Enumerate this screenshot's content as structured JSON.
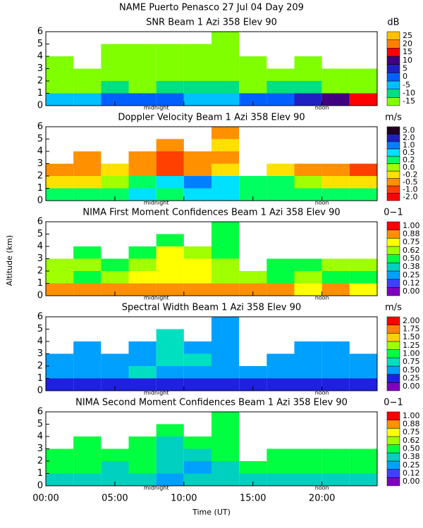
{
  "title": "NAME Puerto Penasco  27 Jul 04 Day 209",
  "ylabel": "Altitude (km)",
  "xlabel": "Time (UT)",
  "chart_data": [
    {
      "type": "heatmap",
      "title": "SNR Beam 1 Azi 358 Elev 90",
      "units": "dB",
      "xlim": [
        0,
        24
      ],
      "xticks": [
        0,
        5,
        10,
        15,
        20
      ],
      "ylim": [
        0,
        6
      ],
      "yticks": [
        0,
        1,
        2,
        3,
        4,
        5,
        6
      ],
      "xbins": [
        0,
        2,
        4,
        6,
        8,
        10,
        12,
        14,
        16,
        18,
        20,
        22,
        24
      ],
      "ybins": [
        0,
        1,
        2,
        3,
        4,
        5,
        6
      ],
      "annotations": [
        {
          "text": "midnight",
          "x": 8
        },
        {
          "text": "noon",
          "x": 20
        }
      ],
      "colorbar": {
        "ticks": [
          -15,
          -10,
          -5,
          0,
          5,
          10,
          15,
          20,
          25
        ],
        "colors": [
          "#80ff00",
          "#00e080",
          "#00c0ff",
          "#0060ff",
          "#2020c0",
          "#400080",
          "#ff0000",
          "#ff8000",
          "#ffc000"
        ]
      },
      "z": [
        [
          -5,
          -5,
          0,
          0,
          0,
          -5,
          -5,
          0,
          0,
          5,
          10,
          15
        ],
        [
          -12,
          -12,
          -10,
          -12,
          -10,
          -10,
          -10,
          -12,
          -10,
          -10,
          -12,
          -12
        ],
        [
          -13,
          -14,
          -12,
          -12,
          -12,
          -12,
          -12,
          -13,
          -14,
          -14,
          -13,
          -13
        ],
        [
          -14,
          null,
          -13,
          -13,
          -12,
          -13,
          -12,
          -14,
          null,
          -14,
          null,
          null
        ],
        [
          null,
          null,
          -14,
          -14,
          -13,
          -14,
          -13,
          null,
          null,
          null,
          null,
          null
        ],
        [
          null,
          null,
          null,
          null,
          null,
          null,
          -14,
          null,
          null,
          null,
          null,
          null
        ]
      ]
    },
    {
      "type": "heatmap",
      "title": "Doppler Velocity Beam 1 Azi 358 Elev 90",
      "units": "m/s",
      "xlim": [
        0,
        24
      ],
      "xticks": [
        0,
        5,
        10,
        15,
        20
      ],
      "ylim": [
        0,
        6
      ],
      "yticks": [
        0,
        1,
        2,
        3,
        4,
        5,
        6
      ],
      "xbins": [
        0,
        2,
        4,
        6,
        8,
        10,
        12,
        14,
        16,
        18,
        20,
        22,
        24
      ],
      "ybins": [
        0,
        1,
        2,
        3,
        4,
        5,
        6
      ],
      "annotations": [
        {
          "text": "midnight",
          "x": 8
        },
        {
          "text": "noon",
          "x": 20
        }
      ],
      "colorbar": {
        "ticks": [
          {
            "value": -2,
            "label": "-2.0"
          },
          {
            "value": -1,
            "label": "-1.0"
          },
          -0.5,
          -0.2,
          {
            "value": 0,
            "label": "0.0"
          },
          0.2,
          0.5,
          {
            "value": 1,
            "label": "1.0"
          },
          {
            "value": 2,
            "label": "2.0"
          },
          {
            "value": 5,
            "label": "5.0"
          }
        ],
        "colors": [
          "#ff0000",
          "#ff4000",
          "#ff9000",
          "#ffe000",
          "#a0ff00",
          "#00ff60",
          "#00e0ff",
          "#0080ff",
          "#2020c0",
          "#200020"
        ]
      },
      "z": [
        [
          0.2,
          0.2,
          0.2,
          0.5,
          0.2,
          0.5,
          0.5,
          0.2,
          0.2,
          0.2,
          0.2,
          0.2
        ],
        [
          -0.2,
          -0.2,
          0,
          0.2,
          0.5,
          1.0,
          0.5,
          0.2,
          0.2,
          0,
          -0.2,
          -0.2
        ],
        [
          -0.5,
          -0.5,
          -0.2,
          -0.5,
          -1.0,
          -0.5,
          -0.2,
          null,
          -0.2,
          -0.5,
          -0.5,
          -1.0
        ],
        [
          null,
          -0.5,
          null,
          -0.5,
          -1.0,
          -0.5,
          -0.5,
          null,
          null,
          null,
          null,
          null
        ],
        [
          null,
          null,
          null,
          null,
          -0.5,
          null,
          -0.2,
          null,
          null,
          null,
          null,
          null
        ],
        [
          null,
          null,
          null,
          null,
          null,
          null,
          -0.5,
          null,
          null,
          null,
          null,
          null
        ]
      ]
    },
    {
      "type": "heatmap",
      "title": "NIMA First Moment Confidences Beam 1 Azi 358 Elev 90",
      "units": "0−1",
      "xlim": [
        0,
        24
      ],
      "xticks": [
        0,
        5,
        10,
        15,
        20
      ],
      "ylim": [
        0,
        6
      ],
      "yticks": [
        0,
        1,
        2,
        3,
        4,
        5,
        6
      ],
      "xbins": [
        0,
        2,
        4,
        6,
        8,
        10,
        12,
        14,
        16,
        18,
        20,
        22,
        24
      ],
      "ybins": [
        0,
        1,
        2,
        3,
        4,
        5,
        6
      ],
      "annotations": [
        {
          "text": "midnight",
          "x": 8
        },
        {
          "text": "noon",
          "x": 20
        }
      ],
      "colorbar": {
        "ticks": [
          {
            "value": 0,
            "label": "0.00"
          },
          0.12,
          0.25,
          0.38,
          {
            "value": 0.5,
            "label": "0.50"
          },
          0.62,
          0.75,
          0.88,
          {
            "value": 1,
            "label": "1.00"
          }
        ],
        "colors": [
          "#8000c0",
          "#4040ff",
          "#00a0ff",
          "#00d0c0",
          "#00ff40",
          "#a0ff00",
          "#ffff00",
          "#ff9000",
          "#ff0000"
        ]
      },
      "z": [
        [
          0.88,
          0.88,
          0.88,
          0.88,
          0.88,
          0.88,
          0.88,
          0.88,
          0.88,
          0.75,
          0.88,
          0.75
        ],
        [
          0.62,
          0.5,
          0.62,
          0.75,
          0.75,
          0.75,
          0.62,
          0.62,
          0.5,
          0.62,
          0.5,
          0.5
        ],
        [
          0.62,
          0.62,
          0.5,
          0.62,
          0.75,
          0.75,
          0.62,
          null,
          0.5,
          0.5,
          0.62,
          0.62
        ],
        [
          null,
          0.5,
          null,
          0.5,
          0.75,
          0.62,
          0.5,
          null,
          null,
          null,
          null,
          null
        ],
        [
          null,
          null,
          null,
          null,
          0.5,
          null,
          0.5,
          null,
          null,
          null,
          null,
          null
        ],
        [
          null,
          null,
          null,
          null,
          null,
          null,
          0.5,
          null,
          null,
          null,
          null,
          null
        ]
      ]
    },
    {
      "type": "heatmap",
      "title": "Spectral Width Beam 1 Azi 358 Elev 90",
      "units": "m/s",
      "xlim": [
        0,
        24
      ],
      "xticks": [
        0,
        5,
        10,
        15,
        20
      ],
      "ylim": [
        0,
        6
      ],
      "yticks": [
        0,
        1,
        2,
        3,
        4,
        5,
        6
      ],
      "xbins": [
        0,
        2,
        4,
        6,
        8,
        10,
        12,
        14,
        16,
        18,
        20,
        22,
        24
      ],
      "ybins": [
        0,
        1,
        2,
        3,
        4,
        5,
        6
      ],
      "annotations": [
        {
          "text": "midnight",
          "x": 8
        },
        {
          "text": "noon",
          "x": 20
        }
      ],
      "colorbar": {
        "ticks": [
          {
            "value": 0,
            "label": "0.00"
          },
          0.25,
          {
            "value": 0.5,
            "label": "0.50"
          },
          0.75,
          {
            "value": 1,
            "label": "1.00"
          },
          1.25,
          {
            "value": 1.5,
            "label": "1.50"
          },
          1.75,
          {
            "value": 2,
            "label": "2.00"
          }
        ],
        "colors": [
          "#8000c0",
          "#2020e0",
          "#00a0ff",
          "#00e0c0",
          "#00ff40",
          "#a0ff00",
          "#ffd000",
          "#ff8000",
          "#ff0000"
        ]
      },
      "z": [
        [
          0.25,
          0.25,
          0.25,
          0.25,
          0.25,
          0.25,
          0.25,
          0.25,
          0.25,
          0.25,
          0.25,
          0.25
        ],
        [
          0.5,
          0.5,
          0.5,
          0.75,
          0.5,
          0.5,
          0.5,
          0.5,
          0.5,
          0.5,
          0.5,
          0.5
        ],
        [
          0.5,
          0.5,
          0.5,
          0.5,
          0.75,
          0.75,
          0.5,
          null,
          0.5,
          0.5,
          0.5,
          0.5
        ],
        [
          null,
          0.5,
          null,
          0.5,
          0.75,
          0.5,
          0.5,
          null,
          null,
          0.5,
          0.5,
          null
        ],
        [
          null,
          null,
          null,
          null,
          0.75,
          null,
          0.5,
          null,
          null,
          null,
          null,
          null
        ],
        [
          null,
          null,
          null,
          null,
          null,
          null,
          0.5,
          null,
          null,
          null,
          null,
          null
        ]
      ]
    },
    {
      "type": "heatmap",
      "title": "NIMA Second Moment Confidences Beam 1 Azi 358 Elev 90",
      "units": "0−1",
      "xlim": [
        0,
        24
      ],
      "xticks": [
        {
          "value": 0,
          "label": "00:00"
        },
        {
          "value": 5,
          "label": "05:00"
        },
        {
          "value": 10,
          "label": "10:00"
        },
        {
          "value": 15,
          "label": "15:00"
        },
        {
          "value": 20,
          "label": "20:00"
        }
      ],
      "ylim": [
        0,
        6
      ],
      "yticks": [
        0,
        1,
        2,
        3,
        4,
        5,
        6
      ],
      "xbins": [
        0,
        2,
        4,
        6,
        8,
        10,
        12,
        14,
        16,
        18,
        20,
        22,
        24
      ],
      "ybins": [
        0,
        1,
        2,
        3,
        4,
        5,
        6
      ],
      "annotations": [
        {
          "text": "midnight",
          "x": 8
        },
        {
          "text": "noon",
          "x": 20
        }
      ],
      "colorbar": {
        "ticks": [
          {
            "value": 0,
            "label": "0.00"
          },
          0.12,
          0.25,
          0.38,
          {
            "value": 0.5,
            "label": "0.50"
          },
          0.62,
          0.75,
          0.88,
          {
            "value": 1,
            "label": "1.00"
          }
        ],
        "colors": [
          "#8000c0",
          "#4040ff",
          "#00a0ff",
          "#00d0c0",
          "#00ff40",
          "#a0ff00",
          "#ffff00",
          "#ff9000",
          "#ff0000"
        ]
      },
      "z": [
        [
          0.38,
          0.38,
          0.38,
          0.38,
          0.25,
          0.38,
          0.38,
          0.38,
          0.38,
          0.38,
          0.38,
          0.38
        ],
        [
          0.5,
          0.5,
          0.38,
          0.5,
          0.38,
          0.25,
          0.38,
          0.5,
          0.5,
          0.5,
          0.5,
          0.5
        ],
        [
          0.5,
          0.5,
          0.5,
          0.5,
          0.38,
          0.38,
          0.5,
          null,
          0.5,
          0.5,
          0.5,
          0.5
        ],
        [
          null,
          0.5,
          null,
          0.5,
          0.38,
          0.5,
          0.5,
          null,
          null,
          null,
          null,
          null
        ],
        [
          null,
          null,
          null,
          null,
          0.5,
          null,
          0.5,
          null,
          null,
          null,
          null,
          null
        ],
        [
          null,
          null,
          null,
          null,
          null,
          null,
          0.5,
          null,
          null,
          null,
          null,
          null
        ]
      ]
    }
  ]
}
